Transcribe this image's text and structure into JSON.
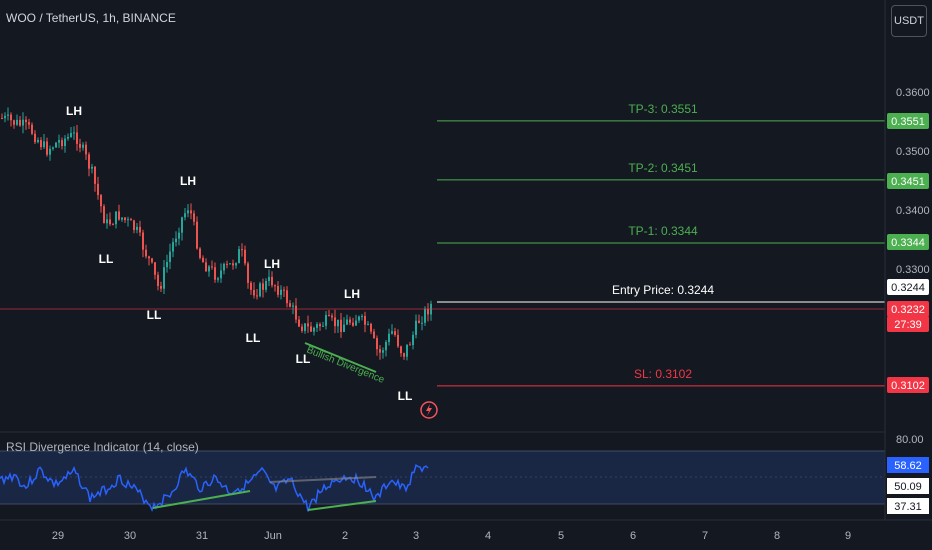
{
  "header": {
    "symbol": "WOO / TetherUS, 1h, BINANCE",
    "currency": "USDT"
  },
  "price_axis": {
    "ticks": [
      "0.3600",
      "0.3500",
      "0.3400",
      "0.3300"
    ],
    "badges": [
      {
        "label": "0.3551",
        "color": "#4caf50",
        "text_color": "#ffffff"
      },
      {
        "label": "0.3451",
        "color": "#4caf50",
        "text_color": "#ffffff"
      },
      {
        "label": "0.3344",
        "color": "#4caf50",
        "text_color": "#ffffff"
      },
      {
        "label": "0.3244",
        "color": "#ffffff",
        "text_color": "#131722"
      },
      {
        "label": "0.3232",
        "color": "#f23645",
        "text_color": "#ffffff"
      },
      {
        "label": "27:39",
        "color": "#f23645",
        "text_color": "#ffffff"
      },
      {
        "label": "0.3102",
        "color": "#f23645",
        "text_color": "#ffffff"
      }
    ]
  },
  "levels": [
    {
      "label": "TP-3: 0.3551",
      "price": 0.3551,
      "color": "#4caf50"
    },
    {
      "label": "TP-2: 0.3451",
      "price": 0.3451,
      "color": "#4caf50"
    },
    {
      "label": "TP-1: 0.3344",
      "price": 0.3344,
      "color": "#4caf50"
    },
    {
      "label": "Entry Price: 0.3244",
      "price": 0.3244,
      "color": "#ffffff"
    },
    {
      "label": "SL: 0.3102",
      "price": 0.3102,
      "color": "#f23645"
    }
  ],
  "structure_labels": [
    "LH",
    "LL",
    "LH",
    "LL",
    "LL",
    "LH",
    "LL",
    "LH",
    "LL"
  ],
  "divergence_label": "Bullish Divergence",
  "rsi": {
    "title": "RSI Divergence Indicator (14, close)",
    "top_tick": "80.00",
    "badges": [
      {
        "label": "58.62",
        "color": "#2962ff",
        "text_color": "#ffffff"
      },
      {
        "label": "50.09",
        "color": "#ffffff",
        "text_color": "#131722"
      },
      {
        "label": "37.31",
        "color": "#ffffff",
        "text_color": "#131722"
      }
    ]
  },
  "time_axis": {
    "ticks": [
      "29",
      "30",
      "31",
      "Jun",
      "2",
      "3",
      "4",
      "5",
      "6",
      "7",
      "8",
      "9"
    ]
  },
  "colors": {
    "background": "#141821",
    "up": "#26a69a",
    "down": "#ef5350",
    "rsi_line": "#2962ff",
    "divergence": "#4caf50"
  }
}
